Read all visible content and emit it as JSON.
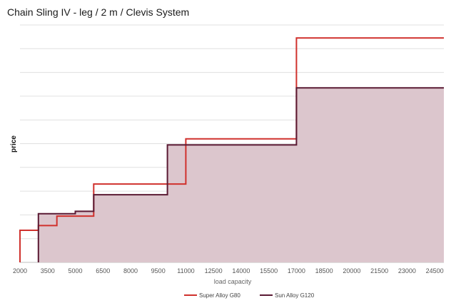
{
  "chart_data": {
    "type": "line",
    "step": "post",
    "title": "Chain Sling IV - leg / 2 m / Clevis System",
    "xlabel": "load capacity",
    "ylabel": "price",
    "x_ticks": [
      "2000",
      "3500",
      "5000",
      "6500",
      "8000",
      "9500",
      "11000",
      "12500",
      "14000",
      "15500",
      "17000",
      "18500",
      "20000",
      "21500",
      "23000",
      "24500"
    ],
    "xlim": [
      2000,
      25000
    ],
    "ylim": [
      0,
      10
    ],
    "grid": "horizontal",
    "legend_position": "bottom",
    "series": [
      {
        "name": "Super Alloy G80",
        "color": "#d0312d",
        "fill": false,
        "x": [
          2000,
          3000,
          4000,
          6000,
          11000,
          17000,
          25000
        ],
        "y": [
          1.35,
          1.55,
          1.95,
          3.3,
          5.2,
          9.45,
          9.45
        ]
      },
      {
        "name": "Sun Alloy G120",
        "color": "#5a1a33",
        "fill": true,
        "fill_color": "#dcc6cd",
        "x": [
          3000,
          5000,
          6000,
          10000,
          17000,
          25000
        ],
        "y": [
          2.05,
          2.15,
          2.85,
          4.95,
          7.35,
          7.35
        ]
      }
    ]
  }
}
